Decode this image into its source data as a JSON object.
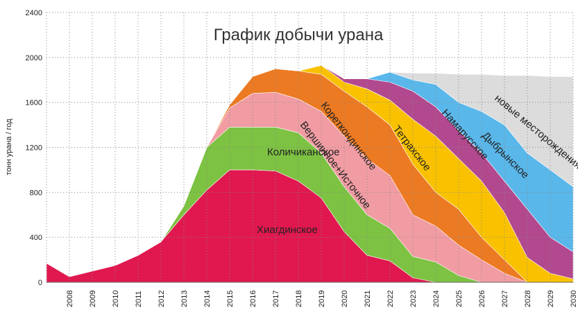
{
  "chart_data": {
    "type": "stacked_area",
    "title": "График добычи урана",
    "y_label": "тонн урана / год",
    "categories": [
      null,
      "2008",
      "2009",
      "2010",
      "2011",
      "2012",
      "2013",
      "2014",
      "2015",
      "2016",
      "2017",
      "2018",
      "2019",
      "2020",
      "2021",
      "2022",
      "2023",
      "2024",
      "2025",
      "2026",
      "2027",
      "2028",
      "2029",
      "2030"
    ],
    "ylim": [
      0,
      2400
    ],
    "yticks": [
      0,
      400,
      800,
      1200,
      1600,
      2000,
      2400
    ],
    "grid": true,
    "series": [
      {
        "name": "Хиагдинское",
        "color": "#e0184f",
        "values": [
          170,
          50,
          100,
          150,
          240,
          360,
          600,
          820,
          1000,
          1000,
          990,
          900,
          750,
          450,
          240,
          190,
          40,
          0,
          0,
          0,
          0,
          0,
          0,
          0
        ]
      },
      {
        "name": "Количиканское",
        "color": "#7dc242",
        "values": [
          0,
          0,
          0,
          0,
          0,
          0,
          80,
          380,
          380,
          380,
          390,
          430,
          400,
          400,
          360,
          290,
          190,
          180,
          60,
          0,
          0,
          0,
          0,
          0
        ]
      },
      {
        "name": "Вершинное+Источное",
        "color": "#f19ca3",
        "values": [
          0,
          0,
          0,
          0,
          0,
          0,
          0,
          0,
          170,
          300,
          310,
          300,
          370,
          450,
          500,
          470,
          370,
          320,
          270,
          200,
          80,
          0,
          0,
          0
        ]
      },
      {
        "name": "Кореткондинское",
        "color": "#ec7a22",
        "values": [
          0,
          0,
          0,
          0,
          0,
          0,
          0,
          0,
          30,
          150,
          210,
          250,
          330,
          400,
          460,
          450,
          450,
          300,
          320,
          200,
          120,
          0,
          0,
          0
        ]
      },
      {
        "name": "Тетрахское",
        "color": "#f9c100",
        "values": [
          0,
          0,
          0,
          0,
          0,
          0,
          0,
          0,
          0,
          0,
          0,
          0,
          80,
          80,
          160,
          220,
          400,
          500,
          450,
          500,
          420,
          220,
          80,
          30
        ]
      },
      {
        "name": "Намарусское",
        "color": "#b2498f",
        "values": [
          0,
          0,
          0,
          0,
          0,
          0,
          0,
          0,
          0,
          0,
          0,
          0,
          0,
          30,
          90,
          160,
          250,
          260,
          250,
          250,
          280,
          430,
          320,
          240
        ]
      },
      {
        "name": "Дыбрынское",
        "color": "#5ab7ea",
        "values": [
          0,
          0,
          0,
          0,
          0,
          0,
          0,
          0,
          0,
          0,
          0,
          0,
          0,
          0,
          0,
          90,
          100,
          200,
          250,
          370,
          500,
          500,
          600,
          580
        ]
      },
      {
        "name": "новые месторождения",
        "color": "#dcdcdc",
        "values": [
          0,
          0,
          0,
          0,
          0,
          0,
          0,
          0,
          0,
          0,
          0,
          0,
          0,
          0,
          0,
          0,
          60,
          100,
          250,
          330,
          440,
          690,
          830,
          980
        ]
      }
    ]
  }
}
